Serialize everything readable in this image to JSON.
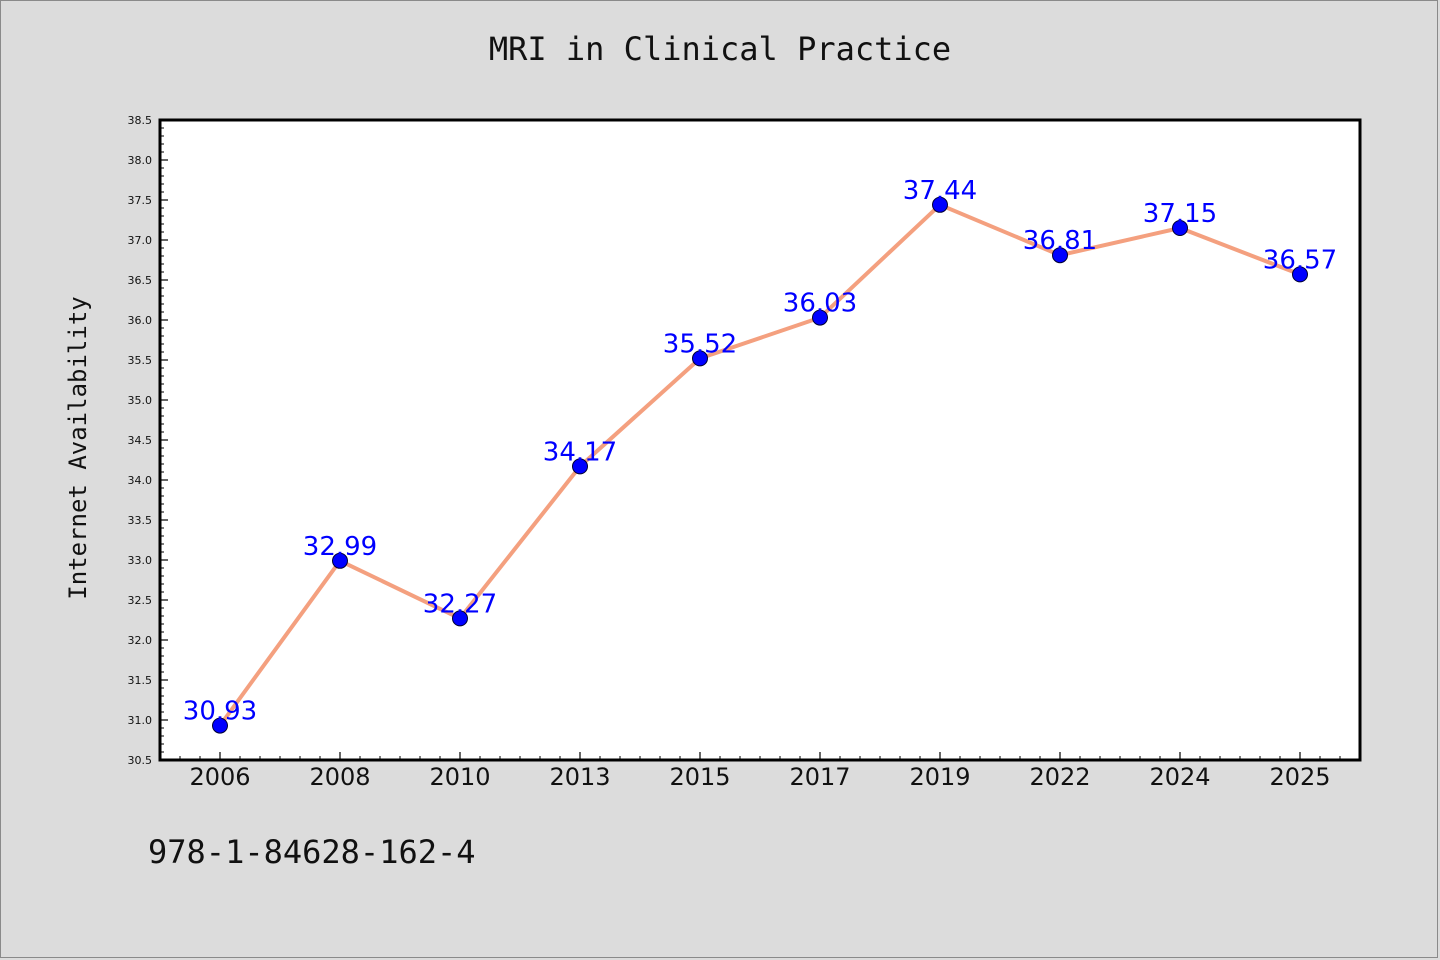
{
  "colors": {
    "background": "#dcdcdc",
    "plot_background": "#ffffff",
    "line": "#f4a07f",
    "marker": "#0000ff",
    "data_label": "#0000ff",
    "axis": "#000000"
  },
  "footer": {
    "code": "978-1-84628-162-4"
  },
  "chart_data": {
    "type": "line",
    "title": "MRI in Clinical Practice",
    "xlabel": "",
    "ylabel": "Internet Availability",
    "categories": [
      "2006",
      "2008",
      "2010",
      "2013",
      "2015",
      "2017",
      "2019",
      "2022",
      "2024",
      "2025"
    ],
    "series": [
      {
        "values": [
          30.93,
          32.99,
          32.27,
          34.17,
          35.52,
          36.03,
          37.44,
          36.81,
          37.15,
          36.57
        ],
        "labels": [
          "30.93",
          "32.99",
          "32.27",
          "34.17",
          "35.52",
          "36.03",
          "37.44",
          "36.81",
          "37.15",
          "36.57"
        ]
      }
    ],
    "ylim": [
      30.5,
      38.5
    ],
    "yticks": [
      "30.5",
      "31.0",
      "31.5",
      "32.0",
      "32.5",
      "33.0",
      "33.5",
      "34.0",
      "34.5",
      "35.0",
      "35.5",
      "36.0",
      "36.5",
      "37.0",
      "37.5",
      "38.0",
      "38.5"
    ],
    "grid": false,
    "legend": "none",
    "markers": "circle"
  }
}
